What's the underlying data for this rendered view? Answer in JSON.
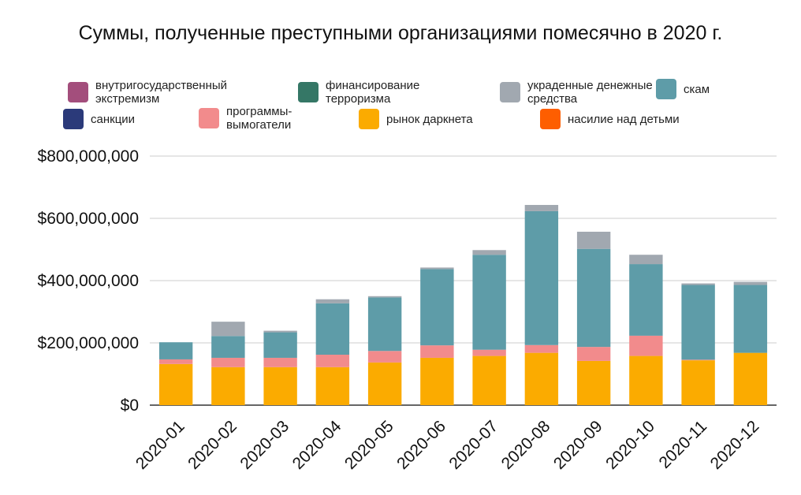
{
  "chart_data": {
    "type": "bar",
    "stacked": true,
    "title": "Суммы, полученные преступными организациями помесячно в 2020 г.",
    "xlabel": "",
    "ylabel": "",
    "ylim": [
      0,
      800000000
    ],
    "yticks": [
      "$0",
      "$200,000,000",
      "$400,000,000",
      "$600,000,000",
      "$800,000,000"
    ],
    "grid": true,
    "legend_position": "top",
    "categories": [
      "2020-01",
      "2020-02",
      "2020-03",
      "2020-04",
      "2020-05",
      "2020-06",
      "2020-07",
      "2020-08",
      "2020-09",
      "2020-10",
      "2020-11",
      "2020-12"
    ],
    "series": [
      {
        "name": "рынок даркнета",
        "color": "#fbab00",
        "values": [
          132000000,
          122000000,
          122000000,
          122000000,
          137000000,
          152000000,
          158000000,
          168000000,
          142000000,
          158000000,
          144000000,
          168000000
        ]
      },
      {
        "name": "программы-вымогатели",
        "color": "#f28b8c",
        "values": [
          15000000,
          30000000,
          30000000,
          40000000,
          37000000,
          40000000,
          20000000,
          25000000,
          45000000,
          65000000,
          2000000,
          0
        ]
      },
      {
        "name": "скам",
        "color": "#5e9ca8",
        "values": [
          55000000,
          70000000,
          82000000,
          165000000,
          172000000,
          245000000,
          305000000,
          430000000,
          315000000,
          230000000,
          240000000,
          218000000
        ]
      },
      {
        "name": "украденные денежные средства",
        "color": "#a1a8b0",
        "values": [
          0,
          46000000,
          5000000,
          13000000,
          4000000,
          5000000,
          15000000,
          20000000,
          55000000,
          30000000,
          5000000,
          10000000
        ]
      },
      {
        "name": "внутригосударственный экстремизм",
        "color": "#a34e7c",
        "values": [
          0,
          0,
          0,
          0,
          0,
          0,
          0,
          0,
          0,
          0,
          0,
          0
        ]
      },
      {
        "name": "финансирование терроризма",
        "color": "#357766",
        "values": [
          0,
          0,
          0,
          0,
          0,
          0,
          0,
          0,
          0,
          0,
          0,
          0
        ]
      },
      {
        "name": "санкции",
        "color": "#2b3a7a",
        "values": [
          0,
          0,
          0,
          0,
          0,
          0,
          0,
          0,
          0,
          0,
          0,
          0
        ]
      },
      {
        "name": "насилие над детьми",
        "color": "#fe5e00",
        "values": [
          0,
          0,
          0,
          0,
          0,
          0,
          0,
          0,
          0,
          0,
          0,
          0
        ]
      }
    ]
  },
  "legend": [
    {
      "label": "внутригосударственный экстремизм",
      "color": "#a34e7c"
    },
    {
      "label": "финансирование терроризма",
      "color": "#357766"
    },
    {
      "label": "украденные денежные средства",
      "color": "#a1a8b0"
    },
    {
      "label": "скам",
      "color": "#5e9ca8"
    },
    {
      "label": "санкции",
      "color": "#2b3a7a"
    },
    {
      "label": "программы-вымогатели",
      "color": "#f28b8c"
    },
    {
      "label": "рынок даркнета",
      "color": "#fbab00"
    },
    {
      "label": "насилие над детьми",
      "color": "#fe5e00"
    }
  ]
}
